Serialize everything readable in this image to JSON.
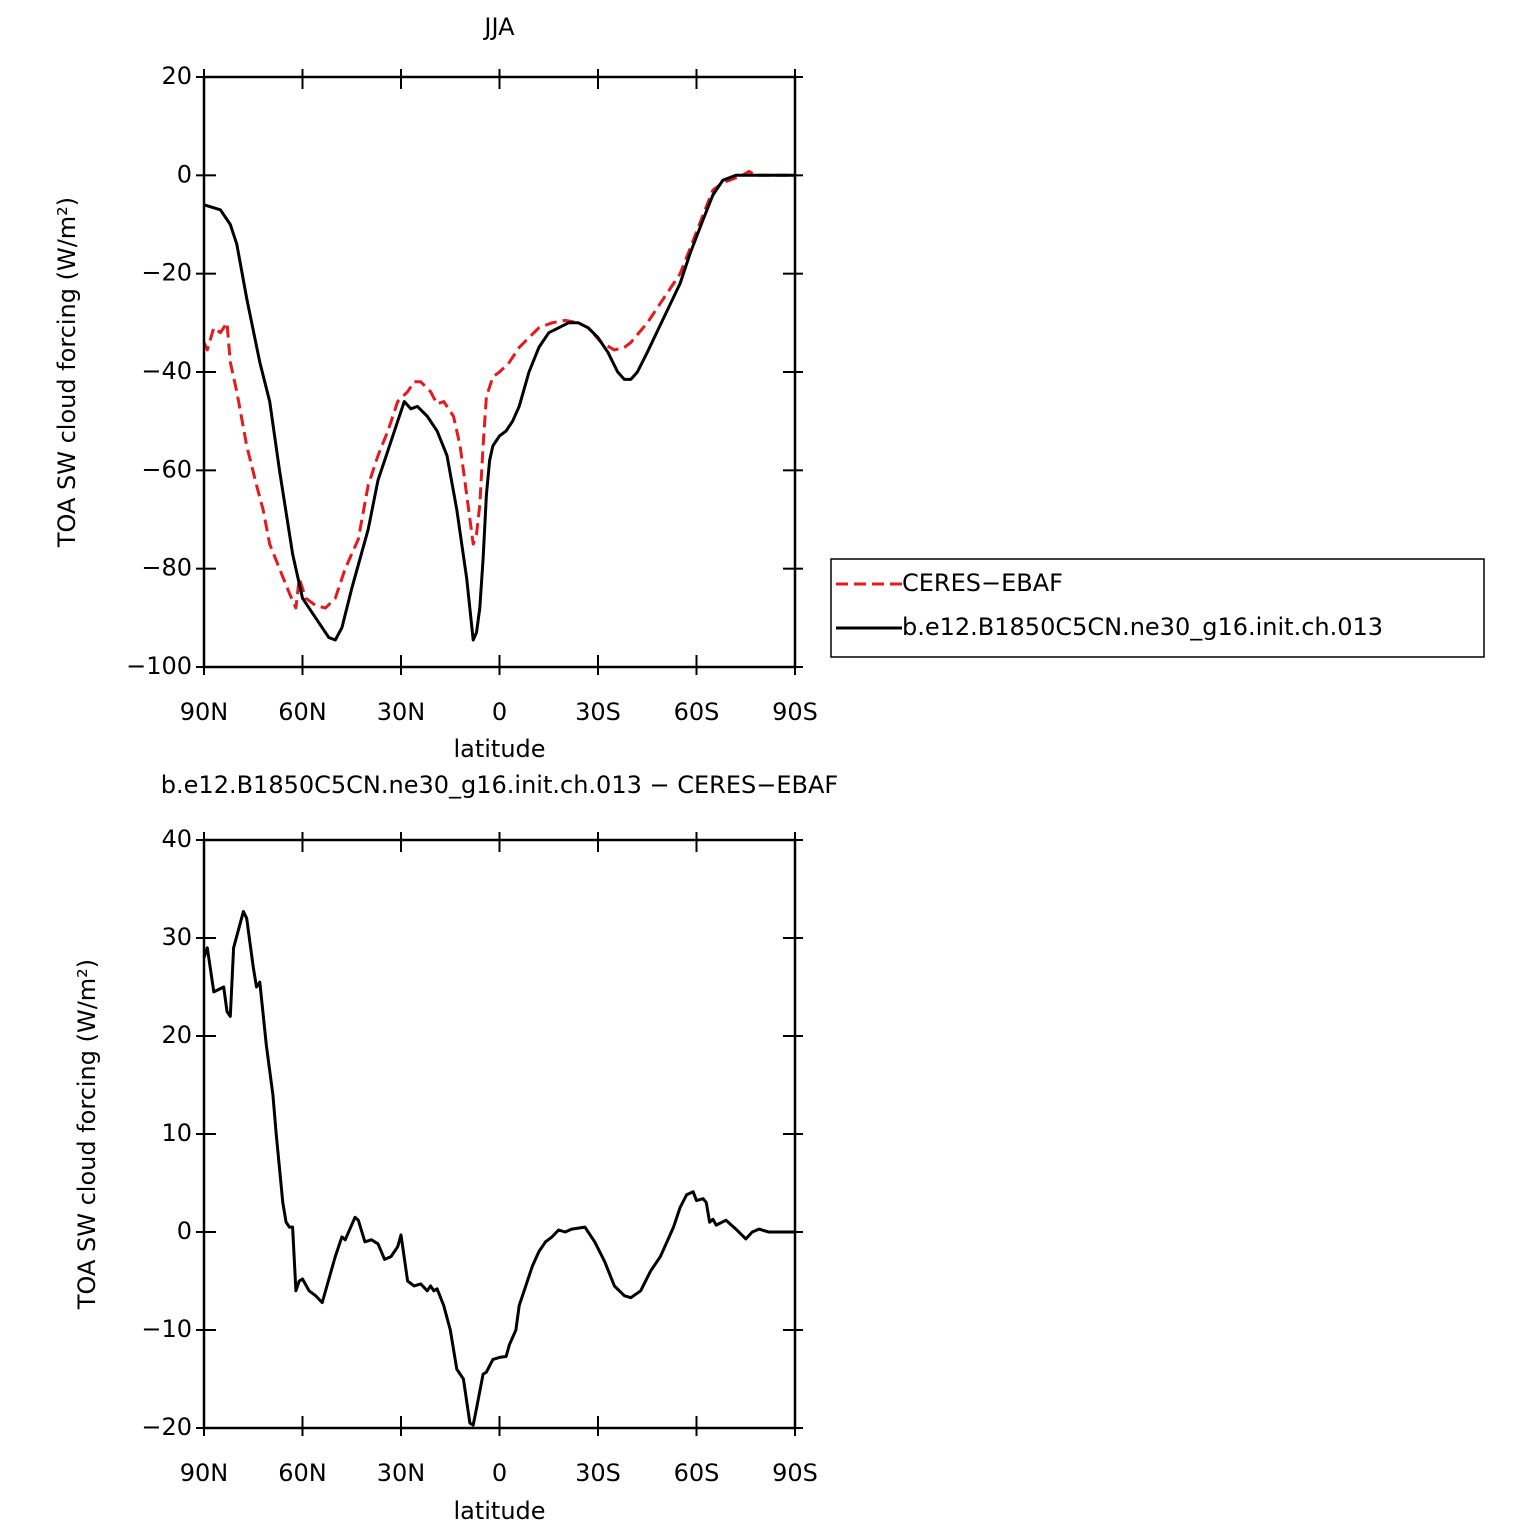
{
  "chart_data": [
    {
      "type": "line",
      "title": "JJA",
      "xlabel": "latitude",
      "ylabel": "TOA SW cloud forcing (W/m²)",
      "xlim": [
        90,
        -90
      ],
      "xticks": [
        {
          "value": 90,
          "label": "90N"
        },
        {
          "value": 60,
          "label": "60N"
        },
        {
          "value": 30,
          "label": "30N"
        },
        0,
        {
          "value": -30,
          "label": "30S"
        },
        {
          "value": -60,
          "label": "60S"
        },
        {
          "value": -90,
          "label": "90S"
        }
      ],
      "ylim": [
        -100,
        20
      ],
      "yticks": [
        {
          "value": -100,
          "label": "−100"
        },
        {
          "value": -80,
          "label": "−80"
        },
        {
          "value": -60,
          "label": "−60"
        },
        {
          "value": -40,
          "label": "−40"
        },
        {
          "value": -20,
          "label": "−20"
        },
        0,
        20
      ],
      "legend": "right",
      "series": [
        {
          "name": "CERES−EBAF",
          "color": "#e41a1c",
          "line_style": "dashed",
          "x": [
            90,
            89,
            87,
            85,
            83,
            82,
            80,
            77,
            74,
            72,
            70,
            67,
            64,
            62,
            61,
            59,
            56,
            53,
            50,
            47,
            43,
            40,
            37,
            34,
            31,
            28,
            26,
            24,
            21,
            19,
            17,
            14,
            12,
            10,
            8,
            7,
            6,
            5,
            4,
            2,
            0,
            -3,
            -6,
            -9,
            -12,
            -16,
            -20,
            -24,
            -27,
            -31,
            -35,
            -38,
            -40,
            -45,
            -50,
            -55,
            -58,
            -62,
            -65,
            -68,
            -70,
            -74,
            -76,
            -78,
            -90
          ],
          "values": [
            -34,
            -35.5,
            -31,
            -32,
            -30,
            -38,
            -44,
            -55,
            -63,
            -68,
            -75,
            -80,
            -85,
            -88,
            -82,
            -86,
            -87.5,
            -88,
            -86,
            -80,
            -74,
            -63,
            -57,
            -52,
            -46,
            -44,
            -42,
            -42,
            -44,
            -46.5,
            -46,
            -49,
            -55,
            -65,
            -75,
            -73,
            -67,
            -55,
            -45,
            -41,
            -40,
            -38,
            -35,
            -33,
            -31,
            -30,
            -29.5,
            -30,
            -31,
            -34,
            -35.5,
            -35,
            -34,
            -30,
            -25,
            -20,
            -15,
            -8,
            -3,
            -1.5,
            -1,
            0,
            0.8,
            0,
            0
          ]
        },
        {
          "name": "b.e12.B1850C5CN.ne30_g16.init.ch.013",
          "color": "#000000",
          "line_style": "solid",
          "x": [
            90,
            85,
            82,
            80,
            77,
            73,
            70,
            67,
            63,
            60,
            56,
            52,
            50,
            48,
            45,
            40,
            37,
            34,
            31,
            29,
            27,
            25,
            22,
            19,
            16,
            13,
            10,
            8,
            7,
            6,
            5,
            4,
            3,
            2,
            0,
            -2,
            -4,
            -6,
            -9,
            -12,
            -15,
            -18,
            -21,
            -24,
            -27,
            -30,
            -33,
            -36,
            -38,
            -40,
            -42,
            -45,
            -50,
            -55,
            -58,
            -62,
            -65,
            -68,
            -72,
            -90
          ],
          "values": [
            -6,
            -7,
            -10,
            -14,
            -25,
            -38,
            -46,
            -60,
            -77,
            -86,
            -90,
            -94,
            -94.5,
            -92,
            -84,
            -72,
            -62,
            -56,
            -50,
            -46,
            -47.5,
            -47,
            -49,
            -52,
            -57,
            -68,
            -82,
            -94.5,
            -93,
            -88,
            -78,
            -65,
            -58,
            -55,
            -53,
            -52,
            -50,
            -47,
            -40,
            -35,
            -32,
            -31,
            -30,
            -30,
            -31,
            -33,
            -36,
            -40,
            -41.5,
            -41.5,
            -40,
            -36,
            -29,
            -22,
            -16,
            -9,
            -4,
            -1,
            0,
            0
          ]
        }
      ]
    },
    {
      "type": "line",
      "title": "b.e12.B1850C5CN.ne30_g16.init.ch.013 − CERES−EBAF",
      "xlabel": "latitude",
      "ylabel": "TOA SW cloud forcing (W/m²)",
      "xlim": [
        90,
        -90
      ],
      "xticks": [
        {
          "value": 90,
          "label": "90N"
        },
        {
          "value": 60,
          "label": "60N"
        },
        {
          "value": 30,
          "label": "30N"
        },
        0,
        {
          "value": -30,
          "label": "30S"
        },
        {
          "value": -60,
          "label": "60S"
        },
        {
          "value": -90,
          "label": "90S"
        }
      ],
      "ylim": [
        -20,
        40
      ],
      "yticks": [
        {
          "value": -20,
          "label": "−20"
        },
        {
          "value": -10,
          "label": "−10"
        },
        0,
        10,
        20,
        30,
        40
      ],
      "series": [
        {
          "color": "#000000",
          "line_style": "solid",
          "x": [
            90,
            89,
            87,
            84,
            83,
            82,
            81,
            78,
            77,
            75,
            74,
            73,
            71,
            69,
            68,
            66,
            65,
            64,
            63,
            62,
            61,
            60,
            58,
            56,
            54,
            50,
            48,
            47,
            44,
            43,
            41,
            39,
            37,
            35,
            33,
            31,
            30,
            28,
            26,
            24,
            22,
            21,
            20,
            19,
            17,
            15,
            13,
            11,
            9,
            8,
            7,
            5,
            4,
            2,
            0,
            -2,
            -3,
            -5,
            -6,
            -8,
            -10,
            -12,
            -14,
            -16,
            -18,
            -20,
            -22,
            -26,
            -29,
            -32,
            -35,
            -38,
            -40,
            -43,
            -46,
            -49,
            -51,
            -53,
            -55,
            -57,
            -59,
            -60,
            -62,
            -63,
            -64,
            -65,
            -66,
            -69,
            -72,
            -75,
            -77,
            -79,
            -82,
            -90
          ],
          "values": [
            28,
            29,
            24.5,
            25,
            22.5,
            22,
            29,
            32.7,
            32,
            27,
            25,
            25.5,
            19,
            14,
            10,
            3,
            1,
            0.5,
            0.5,
            -6,
            -5,
            -4.8,
            -6,
            -6.5,
            -7.2,
            -2.5,
            -0.5,
            -0.8,
            1.5,
            1.2,
            -1,
            -0.8,
            -1.2,
            -2.8,
            -2.5,
            -1.5,
            -0.3,
            -5,
            -5.5,
            -5.3,
            -6,
            -5.5,
            -6,
            -5.8,
            -7.5,
            -10,
            -14,
            -15,
            -19.5,
            -19.7,
            -18,
            -14.5,
            -14.3,
            -13,
            -12.8,
            -12.7,
            -11.5,
            -10,
            -7.5,
            -5.5,
            -3.5,
            -2,
            -1,
            -0.5,
            0.2,
            0,
            0.3,
            0.5,
            -1,
            -3,
            -5.5,
            -6.5,
            -6.7,
            -6,
            -4,
            -2.5,
            -1,
            0.5,
            2.5,
            3.8,
            4.1,
            3.2,
            3.4,
            3,
            1,
            1.3,
            0.7,
            1.2,
            0.3,
            -0.7,
            0,
            0.3,
            0,
            0
          ]
        }
      ]
    }
  ]
}
